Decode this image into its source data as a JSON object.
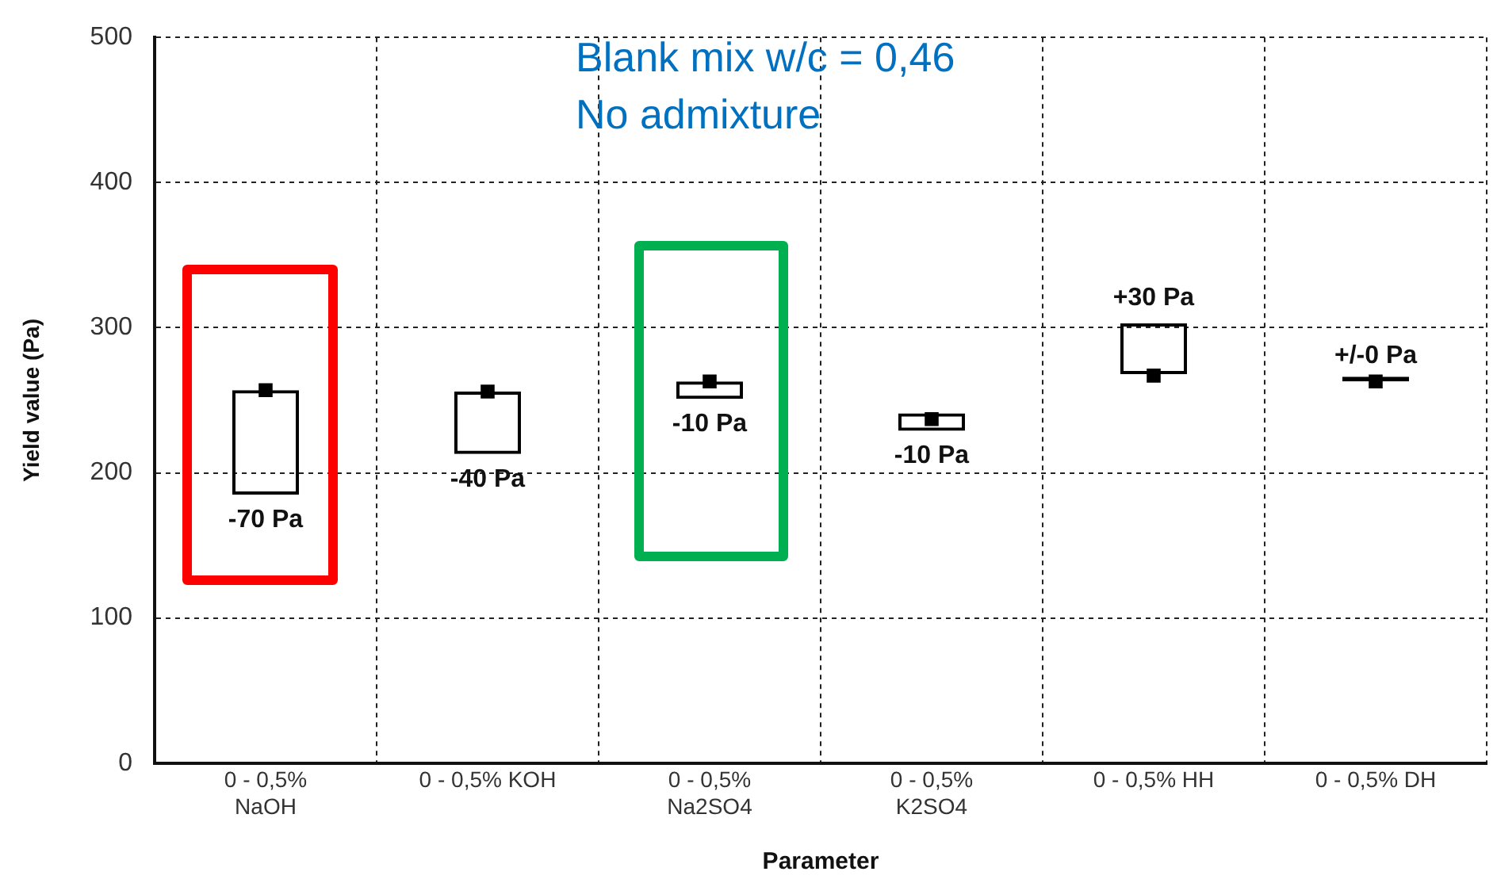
{
  "chart_data": {
    "type": "bar",
    "xlabel": "Parameter",
    "ylabel": "Yield value (Pa)",
    "categories": [
      "0 - 0,5% NaOH",
      "0 - 0,5% KOH",
      "0 - 0,5% Na2SO4",
      "0 - 0,5% K2SO4",
      "0 - 0,5% HH",
      "0 - 0,5% DH"
    ],
    "series": [
      {
        "type": "bar",
        "color": "#000000",
        "base": [
          185,
          213,
          251,
          229,
          268,
          263
        ],
        "values": [
          72,
          43,
          12,
          12,
          35,
          0
        ]
      },
      {
        "type": "scatter",
        "color": "#000000",
        "x": [
          "0 - 0,5% NaOH",
          "0 - 0,5% KOH",
          "0 - 0,5% Na2SO4",
          "0 - 0,5% K2SO4",
          "0 - 0,5% HH",
          "0 - 0,5% DH"
        ],
        "values": [
          257,
          256,
          263,
          237,
          267,
          263
        ]
      }
    ],
    "marker": "square",
    "ylim": [
      0,
      500
    ],
    "yticks": [
      0,
      100,
      200,
      300,
      400,
      500
    ],
    "grid": true,
    "annotations": [
      "Blank mix w/c = 0,46",
      "No admixture",
      {
        "text": "-70 Pa",
        "x": "0 - 0,5% NaOH",
        "y": 185
      },
      {
        "text": "-40 Pa",
        "x": "0 - 0,5% KOH",
        "y": 213
      },
      {
        "text": "-10 Pa",
        "x": "0 - 0,5% Na2SO4",
        "y": 251
      },
      {
        "text": "-10 Pa",
        "x": "0 - 0,5% K2SO4",
        "y": 229
      },
      {
        "text": "+30 Pa",
        "x": "0 - 0,5% HH",
        "y": 303
      },
      {
        "text": "+/-0 Pa",
        "x": "0 - 0,5% DH",
        "y": 263
      }
    ]
  }
}
